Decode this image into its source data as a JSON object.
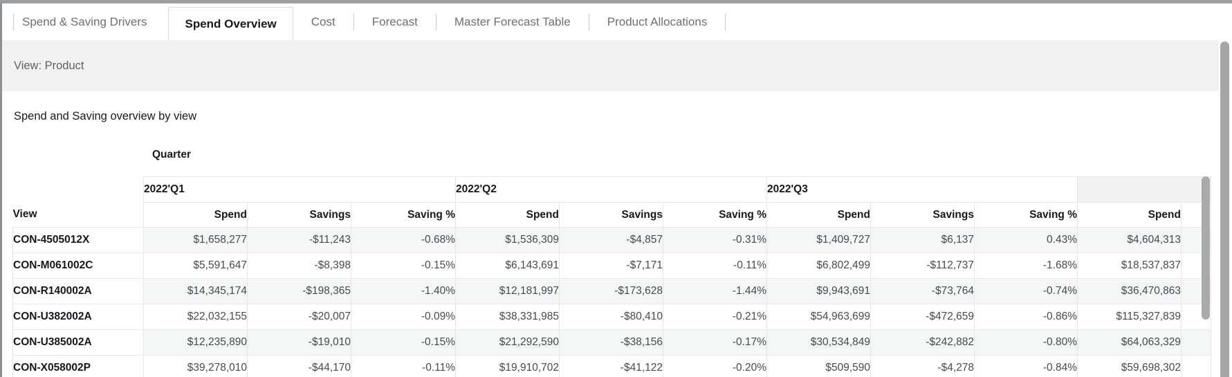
{
  "tabs": [
    {
      "label": "Spend & Saving Drivers",
      "active": false
    },
    {
      "label": "Spend Overview",
      "active": true
    },
    {
      "label": "Cost",
      "active": false
    },
    {
      "label": "Forecast",
      "active": false
    },
    {
      "label": "Master Forecast Table",
      "active": false
    },
    {
      "label": "Product Allocations",
      "active": false
    }
  ],
  "view_bar": {
    "label": "View: Product"
  },
  "section": {
    "title": "Spend and Saving overview by view"
  },
  "table": {
    "corner_label": "Quarter",
    "row_header": "View",
    "quarters": [
      "2022'Q1",
      "2022'Q2",
      "2022'Q3",
      ""
    ],
    "metrics": [
      "Spend",
      "Savings",
      "Saving %"
    ],
    "last_metric": "Spend",
    "rows": [
      {
        "view": "CON-4505012X",
        "q1": [
          "$1,658,277",
          "-$11,243",
          "-0.68%"
        ],
        "q2": [
          "$1,536,309",
          "-$4,857",
          "-0.31%"
        ],
        "q3": [
          "$1,409,727",
          "$6,137",
          "0.43%"
        ],
        "next_spend": "$4,604,313"
      },
      {
        "view": "CON-M061002C",
        "q1": [
          "$5,591,647",
          "-$8,398",
          "-0.15%"
        ],
        "q2": [
          "$6,143,691",
          "-$7,171",
          "-0.11%"
        ],
        "q3": [
          "$6,802,499",
          "-$112,737",
          "-1.68%"
        ],
        "next_spend": "$18,537,837"
      },
      {
        "view": "CON-R140002A",
        "q1": [
          "$14,345,174",
          "-$198,365",
          "-1.40%"
        ],
        "q2": [
          "$12,181,997",
          "-$173,628",
          "-1.44%"
        ],
        "q3": [
          "$9,943,691",
          "-$73,764",
          "-0.74%"
        ],
        "next_spend": "$36,470,863"
      },
      {
        "view": "CON-U382002A",
        "q1": [
          "$22,032,155",
          "-$20,007",
          "-0.09%"
        ],
        "q2": [
          "$38,331,985",
          "-$80,410",
          "-0.21%"
        ],
        "q3": [
          "$54,963,699",
          "-$472,659",
          "-0.86%"
        ],
        "next_spend": "$115,327,839"
      },
      {
        "view": "CON-U385002A",
        "q1": [
          "$12,235,890",
          "-$19,010",
          "-0.15%"
        ],
        "q2": [
          "$21,292,590",
          "-$38,156",
          "-0.17%"
        ],
        "q3": [
          "$30,534,849",
          "-$242,882",
          "-0.80%"
        ],
        "next_spend": "$64,063,329"
      },
      {
        "view": "CON-X058002P",
        "q1": [
          "$39,278,010",
          "-$44,170",
          "-0.11%"
        ],
        "q2": [
          "$19,910,702",
          "-$41,122",
          "-0.20%"
        ],
        "q3": [
          "$509,590",
          "-$4,278",
          "-0.84%"
        ],
        "next_spend": "$59,698,302"
      }
    ]
  },
  "colors": {
    "stripe": "#f5f6f6",
    "border": "#e7e7e8",
    "view_bar_bg": "#f1f1f2",
    "quarter_empty_bg": "#f2f2f3",
    "scrollbar_thumb": "#a8aaab",
    "tab_inactive_text": "#6b7077",
    "text_dark": "#15191e"
  }
}
